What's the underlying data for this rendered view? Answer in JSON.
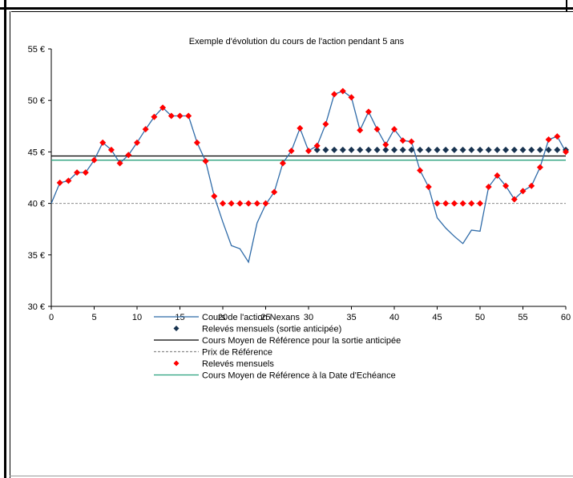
{
  "chart_data": {
    "type": "line",
    "title": "Exemple  d'évolution  du cours de  l'action pendant  5 ans",
    "xlabel": "",
    "ylabel": "",
    "xlim": [
      0,
      60
    ],
    "ylim": [
      30,
      55
    ],
    "x_ticks": [
      "0",
      "5",
      "10",
      "15",
      "20",
      "25",
      "30",
      "35",
      "40",
      "45",
      "50",
      "55",
      "60"
    ],
    "y_ticks": [
      "30 €",
      "35 €",
      "40 €",
      "45 €",
      "50 €",
      "55 €"
    ],
    "grid": false,
    "legend_position": "bottom",
    "series": [
      {
        "name": "Cours de l'action Nexans",
        "kind": "line",
        "color": "#2f6ba8",
        "x": [
          0,
          1,
          2,
          3,
          4,
          5,
          6,
          7,
          8,
          9,
          10,
          11,
          12,
          13,
          14,
          15,
          16,
          17,
          18,
          19,
          20,
          21,
          22,
          23,
          24,
          25,
          26,
          27,
          28,
          29,
          30,
          31,
          32,
          33,
          34,
          35,
          36,
          37,
          38,
          39,
          40,
          41,
          42,
          43,
          44,
          45,
          46,
          47,
          48,
          49,
          50,
          51,
          52,
          53,
          54,
          55,
          56,
          57,
          58,
          59,
          60
        ],
        "y": [
          40.0,
          42.0,
          42.2,
          43.0,
          43.0,
          44.2,
          45.9,
          45.2,
          43.9,
          44.7,
          45.9,
          47.2,
          48.4,
          49.3,
          48.5,
          48.5,
          48.5,
          45.9,
          44.1,
          40.7,
          38.2,
          35.9,
          35.6,
          34.3,
          38.1,
          39.9,
          41.1,
          43.9,
          45.1,
          47.3,
          45.1,
          45.6,
          47.7,
          50.6,
          50.9,
          50.3,
          47.1,
          48.9,
          47.2,
          45.7,
          47.2,
          46.1,
          46.0,
          43.2,
          41.6,
          38.6,
          37.6,
          36.8,
          36.1,
          37.4,
          37.3,
          41.6,
          42.7,
          41.7,
          40.4,
          41.2,
          41.7,
          43.5,
          46.2,
          46.5,
          45.0
        ]
      },
      {
        "name": "Relevés mensuels (sortie anticipée)",
        "kind": "markers",
        "marker": "diamond",
        "color": "#17324f",
        "x": [
          31,
          32,
          33,
          34,
          35,
          36,
          37,
          38,
          39,
          40,
          41,
          42,
          43,
          44,
          45,
          46,
          47,
          48,
          49,
          50,
          51,
          52,
          53,
          54,
          55,
          56,
          57,
          58,
          59,
          60
        ],
        "y": [
          45.2,
          45.2,
          45.2,
          45.2,
          45.2,
          45.2,
          45.2,
          45.2,
          45.2,
          45.2,
          45.2,
          45.2,
          45.2,
          45.2,
          45.2,
          45.2,
          45.2,
          45.2,
          45.2,
          45.2,
          45.2,
          45.2,
          45.2,
          45.2,
          45.2,
          45.2,
          45.2,
          45.2,
          45.2,
          45.2
        ]
      },
      {
        "name": "Cours Moyen de Référence pour la sortie anticipée",
        "kind": "hline",
        "color": "#000000",
        "y": 44.6
      },
      {
        "name": "Prix de Référence",
        "kind": "hline",
        "dashed": true,
        "color": "#8c8c8c",
        "y": 40.0
      },
      {
        "name": "Relevés mensuels",
        "kind": "markers",
        "marker": "diamond",
        "color": "#ff0000",
        "x": [
          1,
          2,
          3,
          4,
          5,
          6,
          7,
          8,
          9,
          10,
          11,
          12,
          13,
          14,
          15,
          16,
          17,
          18,
          19,
          20,
          21,
          22,
          23,
          24,
          25,
          26,
          27,
          28,
          29,
          30,
          31,
          32,
          33,
          34,
          35,
          36,
          37,
          38,
          39,
          40,
          41,
          42,
          43,
          44,
          45,
          46,
          47,
          48,
          49,
          50,
          51,
          52,
          53,
          54,
          55,
          56,
          57,
          58,
          59,
          60
        ],
        "y": [
          42.0,
          42.2,
          43.0,
          43.0,
          44.2,
          45.9,
          45.2,
          43.9,
          44.7,
          45.9,
          47.2,
          48.4,
          49.3,
          48.5,
          48.5,
          48.5,
          45.9,
          44.1,
          40.7,
          40.0,
          40.0,
          40.0,
          40.0,
          40.0,
          40.0,
          41.1,
          43.9,
          45.1,
          47.3,
          45.1,
          45.6,
          47.7,
          50.6,
          50.9,
          50.3,
          47.1,
          48.9,
          47.2,
          45.7,
          47.2,
          46.1,
          46.0,
          43.2,
          41.6,
          40.0,
          40.0,
          40.0,
          40.0,
          40.0,
          40.0,
          41.6,
          42.7,
          41.7,
          40.4,
          41.2,
          41.7,
          43.5,
          46.2,
          46.5,
          45.0
        ]
      },
      {
        "name": "Cours Moyen de Référence à la Date d'Echéance",
        "kind": "hline",
        "color": "#2aa17e",
        "y": 44.2
      }
    ]
  }
}
